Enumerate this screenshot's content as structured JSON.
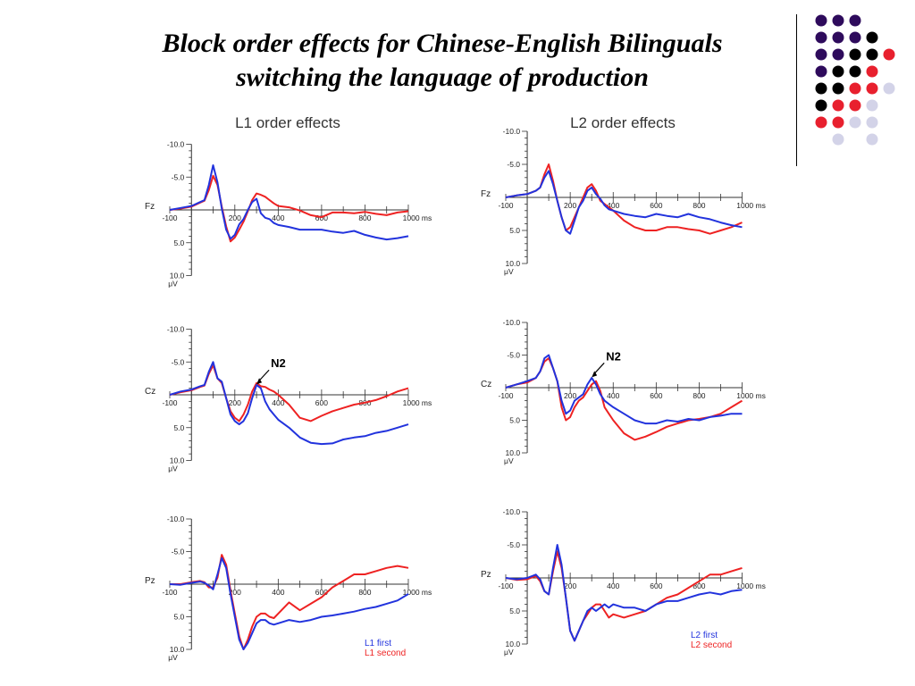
{
  "slide": {
    "title_line1": "Block order effects for Chinese-English Bilinguals",
    "title_line2": "switching the language of production"
  },
  "colors": {
    "first": "#2233dd",
    "second": "#ee2222",
    "dot_purple": "#2e0b5c",
    "dot_black": "#000000",
    "dot_red": "#e8202e",
    "dot_lavender": "#d3d3e8"
  },
  "decor_dots": [
    [
      "purple",
      "purple",
      "purple",
      "",
      "",
      ""
    ],
    [
      "purple",
      "purple",
      "purple",
      "black",
      "",
      ""
    ],
    [
      "purple",
      "purple",
      "black",
      "black",
      "red",
      ""
    ],
    [
      "purple",
      "black",
      "black",
      "red",
      "",
      ""
    ],
    [
      "black",
      "black",
      "red",
      "red",
      "lavender",
      ""
    ],
    [
      "black",
      "red",
      "red",
      "lavender",
      "",
      ""
    ],
    [
      "red",
      "red",
      "lavender",
      "lavender",
      "",
      ""
    ],
    [
      "",
      "lavender",
      "",
      "lavender",
      "",
      ""
    ]
  ],
  "chart_data": [
    {
      "type": "line",
      "panel_title": "L1 order effects",
      "panels": [
        {
          "electrode": "Fz",
          "x": [
            -100,
            -50,
            0,
            40,
            60,
            80,
            100,
            120,
            140,
            160,
            180,
            200,
            220,
            240,
            260,
            280,
            300,
            320,
            340,
            360,
            380,
            400,
            450,
            500,
            550,
            600,
            650,
            700,
            750,
            800,
            850,
            900,
            950,
            1000
          ],
          "series": [
            {
              "values": [
                0,
                -0.3,
                -0.6,
                -1.2,
                -1.5,
                -3.8,
                -6.8,
                -4.2,
                -0.2,
                3.0,
                4.4,
                3.8,
                2.2,
                1.4,
                0.0,
                -1.2,
                -1.7,
                0.5,
                1.2,
                1.4,
                2.0,
                2.3,
                2.6,
                3.0,
                3.0,
                3.0,
                3.3,
                3.5,
                3.2,
                3.8,
                4.2,
                4.5,
                4.3,
                4.0
              ]
            },
            {
              "values": [
                0,
                -0.2,
                -0.5,
                -1.1,
                -1.4,
                -3.0,
                -5.2,
                -3.8,
                -0.5,
                2.5,
                4.8,
                4.2,
                3.0,
                1.8,
                0.2,
                -1.5,
                -2.5,
                -2.3,
                -2.0,
                -1.5,
                -1.0,
                -0.6,
                -0.4,
                0.1,
                0.8,
                1.1,
                0.4,
                0.4,
                0.5,
                0.3,
                0.6,
                0.8,
                0.4,
                0.2
              ]
            }
          ]
        },
        {
          "electrode": "Cz",
          "x": [
            -100,
            -50,
            0,
            40,
            60,
            80,
            100,
            120,
            140,
            160,
            180,
            200,
            220,
            240,
            260,
            280,
            300,
            320,
            340,
            360,
            380,
            400,
            450,
            500,
            550,
            600,
            650,
            700,
            750,
            800,
            850,
            900,
            950,
            1000
          ],
          "series": [
            {
              "values": [
                0,
                -0.5,
                -0.8,
                -1.3,
                -1.5,
                -3.5,
                -5.0,
                -2.5,
                -2.0,
                0.5,
                3.0,
                4.0,
                4.5,
                4.0,
                2.8,
                0.5,
                -1.5,
                -1.0,
                1.0,
                2.2,
                3.0,
                3.8,
                5.0,
                6.5,
                7.3,
                7.5,
                7.4,
                6.8,
                6.5,
                6.3,
                5.8,
                5.5,
                5.0,
                4.5
              ]
            },
            {
              "values": [
                0,
                -0.4,
                -0.7,
                -1.2,
                -1.4,
                -3.2,
                -4.5,
                -2.5,
                -1.8,
                0.5,
                2.5,
                3.5,
                4.0,
                3.0,
                1.5,
                -0.5,
                -1.8,
                -1.3,
                -1.2,
                -0.8,
                -0.5,
                0.0,
                1.5,
                3.5,
                4.0,
                3.2,
                2.5,
                2.0,
                1.5,
                1.2,
                0.8,
                0.2,
                -0.5,
                -1.0
              ]
            }
          ]
        },
        {
          "electrode": "Pz",
          "x": [
            -100,
            -50,
            0,
            40,
            60,
            80,
            100,
            120,
            140,
            160,
            180,
            200,
            220,
            240,
            260,
            280,
            300,
            320,
            340,
            360,
            380,
            400,
            450,
            500,
            550,
            600,
            650,
            700,
            750,
            800,
            850,
            900,
            950,
            1000
          ],
          "series": [
            {
              "values": [
                0,
                0.1,
                -0.2,
                -0.4,
                -0.2,
                0.2,
                0.8,
                -1.5,
                -4.0,
                -2.5,
                1.5,
                5.0,
                8.5,
                10.0,
                9.0,
                7.5,
                6.0,
                5.5,
                5.5,
                6.0,
                6.2,
                6.0,
                5.5,
                5.8,
                5.5,
                5.0,
                4.8,
                4.5,
                4.2,
                3.8,
                3.5,
                3.0,
                2.5,
                1.5
              ]
            },
            {
              "values": [
                0,
                0.0,
                -0.3,
                -0.5,
                -0.3,
                0.5,
                0.5,
                -1.0,
                -4.5,
                -3.0,
                1.0,
                4.5,
                8.0,
                10.0,
                8.5,
                6.5,
                5.0,
                4.5,
                4.5,
                5.0,
                5.2,
                4.5,
                2.8,
                4.0,
                3.0,
                2.0,
                0.5,
                -0.5,
                -1.5,
                -1.5,
                -2.0,
                -2.5,
                -2.8,
                -2.5
              ]
            }
          ],
          "legend": [
            "L1 first",
            "L1 second"
          ]
        }
      ],
      "annotation": {
        "label": "N2",
        "panel": "Cz",
        "x": 300
      },
      "xticks": [
        -100,
        200,
        400,
        600,
        800,
        "1000 ms"
      ],
      "yticks": [
        "-10.0",
        "-5.0",
        "5.0",
        "10.0"
      ],
      "yunit": "μV",
      "ylim": [
        -10,
        10
      ],
      "xlim": [
        -100,
        1000
      ]
    },
    {
      "type": "line",
      "panel_title": "L2 order effects",
      "panels": [
        {
          "electrode": "Fz",
          "x": [
            -100,
            -50,
            0,
            40,
            60,
            80,
            100,
            120,
            140,
            160,
            180,
            200,
            220,
            240,
            260,
            280,
            300,
            320,
            340,
            360,
            380,
            400,
            450,
            500,
            550,
            600,
            650,
            700,
            750,
            800,
            850,
            900,
            950,
            1000
          ],
          "series": [
            {
              "values": [
                0,
                -0.3,
                -0.5,
                -1.0,
                -1.5,
                -3.0,
                -4.0,
                -2.0,
                0.5,
                3.0,
                5.0,
                5.5,
                3.5,
                1.5,
                0.5,
                -1.0,
                -1.5,
                -0.5,
                0.2,
                1.2,
                1.8,
                2.0,
                2.5,
                2.8,
                3.0,
                2.5,
                2.8,
                3.0,
                2.5,
                3.0,
                3.3,
                3.8,
                4.2,
                4.5
              ]
            },
            {
              "values": [
                0,
                -0.3,
                -0.5,
                -1.0,
                -1.5,
                -3.5,
                -5.0,
                -2.5,
                0.5,
                3.0,
                5.0,
                4.5,
                3.0,
                1.5,
                0.0,
                -1.5,
                -2.0,
                -1.0,
                0.5,
                1.0,
                1.5,
                2.0,
                3.5,
                4.5,
                5.0,
                5.0,
                4.5,
                4.5,
                4.8,
                5.0,
                5.5,
                5.0,
                4.5,
                3.8
              ]
            }
          ]
        },
        {
          "electrode": "Cz",
          "x": [
            -100,
            -50,
            0,
            40,
            60,
            80,
            100,
            120,
            140,
            160,
            180,
            200,
            220,
            240,
            260,
            280,
            300,
            320,
            340,
            360,
            380,
            400,
            450,
            500,
            550,
            600,
            650,
            700,
            750,
            800,
            850,
            900,
            950,
            1000
          ],
          "series": [
            {
              "values": [
                0,
                -0.5,
                -1.0,
                -1.5,
                -2.5,
                -4.5,
                -5.0,
                -3.0,
                -1.0,
                2.0,
                4.0,
                3.5,
                2.0,
                1.5,
                1.0,
                -0.5,
                -1.5,
                -0.5,
                1.0,
                2.0,
                2.5,
                3.0,
                4.0,
                5.0,
                5.5,
                5.5,
                5.0,
                5.2,
                4.8,
                5.0,
                4.5,
                4.3,
                4.0,
                4.0
              ]
            },
            {
              "values": [
                0,
                -0.5,
                -0.8,
                -1.5,
                -2.5,
                -4.0,
                -4.5,
                -3.0,
                -1.0,
                3.0,
                5.0,
                4.5,
                3.0,
                2.0,
                1.5,
                0.5,
                -0.5,
                -1.0,
                0.5,
                3.0,
                4.0,
                5.0,
                7.0,
                8.0,
                7.5,
                6.8,
                6.0,
                5.5,
                5.0,
                4.8,
                4.5,
                4.0,
                3.0,
                2.0
              ]
            }
          ]
        },
        {
          "electrode": "Pz",
          "x": [
            -100,
            -50,
            0,
            40,
            60,
            80,
            100,
            120,
            140,
            160,
            180,
            200,
            220,
            240,
            260,
            280,
            300,
            320,
            340,
            360,
            380,
            400,
            450,
            500,
            550,
            600,
            650,
            700,
            750,
            800,
            850,
            900,
            950,
            1000
          ],
          "series": [
            {
              "values": [
                0,
                0.2,
                0.0,
                -0.5,
                0.2,
                2.0,
                2.5,
                -1.5,
                -5.0,
                -2.0,
                3.0,
                8.0,
                9.5,
                8.0,
                6.5,
                5.0,
                4.5,
                5.0,
                4.5,
                4.0,
                4.5,
                4.0,
                4.5,
                4.5,
                5.0,
                4.0,
                3.5,
                3.5,
                3.0,
                2.5,
                2.2,
                2.5,
                2.0,
                1.8
              ]
            },
            {
              "values": [
                0,
                0.3,
                0.2,
                -0.3,
                0.5,
                2.0,
                2.5,
                -1.0,
                -4.0,
                -1.5,
                3.0,
                8.0,
                9.5,
                8.0,
                6.5,
                5.5,
                4.5,
                4.0,
                4.0,
                5.0,
                6.0,
                5.5,
                6.0,
                5.5,
                5.0,
                4.0,
                3.0,
                2.5,
                1.5,
                0.5,
                -0.5,
                -0.5,
                -1.0,
                -1.5
              ]
            }
          ],
          "legend": [
            "L2 first",
            "L2 second"
          ]
        }
      ],
      "annotation": {
        "label": "N2",
        "panel": "Cz",
        "x": 300
      },
      "xticks": [
        -100,
        200,
        400,
        600,
        800,
        "1000 ms"
      ],
      "yticks": [
        "-10.0",
        "-5.0",
        "5.0",
        "10.0"
      ],
      "yunit": "μV",
      "ylim": [
        -10,
        10
      ],
      "xlim": [
        -100,
        1000
      ]
    }
  ]
}
